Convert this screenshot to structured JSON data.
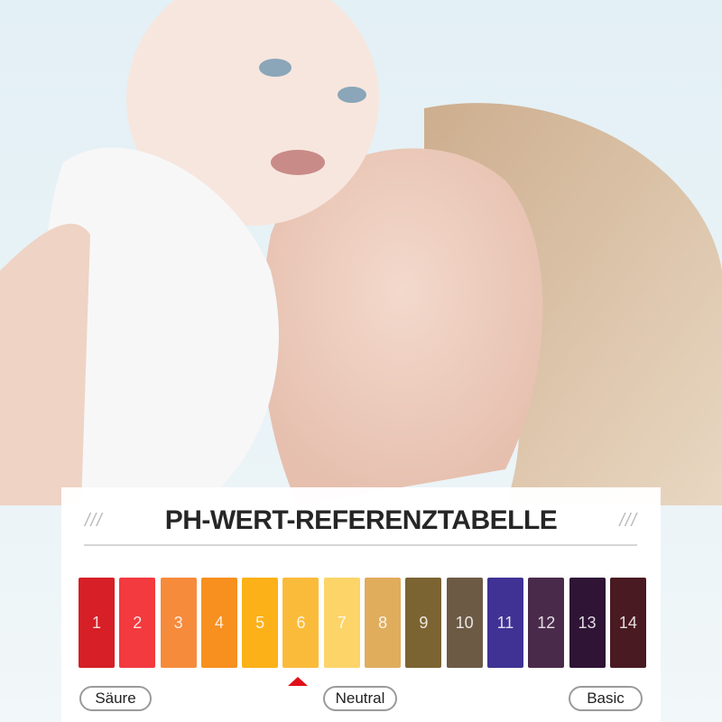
{
  "title": "PH-WERT-REFERENZTABELLE",
  "decor_left": "///",
  "decor_right": "///",
  "scale": [
    {
      "label": "1",
      "color": "#d61f26"
    },
    {
      "label": "2",
      "color": "#f23a3f"
    },
    {
      "label": "3",
      "color": "#f68b3c"
    },
    {
      "label": "4",
      "color": "#f7901e"
    },
    {
      "label": "5",
      "color": "#fbb117"
    },
    {
      "label": "6",
      "color": "#fbbb3a"
    },
    {
      "label": "7",
      "color": "#fcd468"
    },
    {
      "label": "8",
      "color": "#e0ad5c"
    },
    {
      "label": "9",
      "color": "#7b6432"
    },
    {
      "label": "10",
      "color": "#6d5a45"
    },
    {
      "label": "11",
      "color": "#3f3294"
    },
    {
      "label": "12",
      "color": "#4a2a4a"
    },
    {
      "label": "13",
      "color": "#2f1436"
    },
    {
      "label": "14",
      "color": "#4a1a22"
    }
  ],
  "marker_value": "6",
  "marker_color": "#e0101a",
  "labels": {
    "acid": "Säure",
    "neutral": "Neutral",
    "basic": "Basic"
  }
}
